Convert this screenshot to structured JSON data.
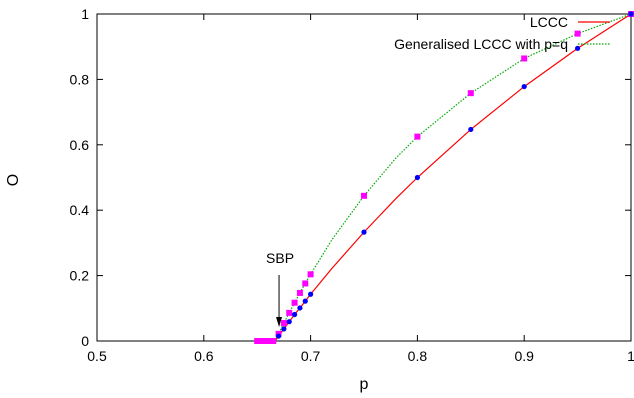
{
  "chart_data": {
    "type": "line",
    "title": "",
    "xlabel": "p",
    "ylabel": "O",
    "xlim": [
      0.5,
      1.0
    ],
    "ylim": [
      0,
      1
    ],
    "xticks": [
      "0.5",
      "0.6",
      "0.7",
      "0.8",
      "0.9",
      "1"
    ],
    "yticks": [
      "0",
      "0.2",
      "0.4",
      "0.6",
      "0.8",
      "1"
    ],
    "legend_position": "top-right",
    "grid": false,
    "series": [
      {
        "name": "LCCC",
        "style": "solid-line",
        "color": "#ff0000",
        "x": [
          0.6667,
          0.67,
          0.675,
          0.68,
          0.685,
          0.69,
          0.695,
          0.7,
          0.72,
          0.75,
          0.78,
          0.8,
          0.85,
          0.9,
          0.95,
          1.0
        ],
        "y": [
          0.0,
          0.015,
          0.037,
          0.059,
          0.081,
          0.101,
          0.122,
          0.143,
          0.222,
          0.333,
          0.436,
          0.5,
          0.647,
          0.778,
          0.895,
          1.0
        ]
      },
      {
        "name": "Generalised LCCC with p=q",
        "style": "dotted-line",
        "color": "#00aa00",
        "x": [
          0.6667,
          0.67,
          0.675,
          0.68,
          0.685,
          0.69,
          0.695,
          0.7,
          0.72,
          0.75,
          0.78,
          0.8,
          0.85,
          0.9,
          0.95,
          1.0
        ],
        "y": [
          0.0,
          0.022,
          0.055,
          0.086,
          0.117,
          0.147,
          0.176,
          0.204,
          0.31,
          0.444,
          0.56,
          0.625,
          0.758,
          0.864,
          0.94,
          1.0
        ]
      },
      {
        "name": "",
        "style": "square-markers",
        "color": "#ff00ff",
        "x": [
          0.65,
          0.655,
          0.66,
          0.665,
          0.67,
          0.675,
          0.68,
          0.685,
          0.69,
          0.695,
          0.7,
          0.75,
          0.8,
          0.85,
          0.9,
          0.95,
          1.0
        ],
        "y": [
          0.0,
          0.0,
          0.0,
          0.0,
          0.022,
          0.055,
          0.086,
          0.117,
          0.147,
          0.176,
          0.204,
          0.444,
          0.625,
          0.758,
          0.864,
          0.94,
          1.0
        ]
      },
      {
        "name": "",
        "style": "dot-markers",
        "color": "#0000ff",
        "x": [
          0.67,
          0.675,
          0.68,
          0.685,
          0.69,
          0.695,
          0.7,
          0.75,
          0.8,
          0.85,
          0.9,
          0.95,
          1.0
        ],
        "y": [
          0.015,
          0.037,
          0.059,
          0.081,
          0.101,
          0.122,
          0.143,
          0.333,
          0.5,
          0.647,
          0.778,
          0.895,
          1.0
        ]
      }
    ],
    "annotations": [
      {
        "text": "SBP",
        "x": 0.6667,
        "y": 0.0
      }
    ]
  }
}
